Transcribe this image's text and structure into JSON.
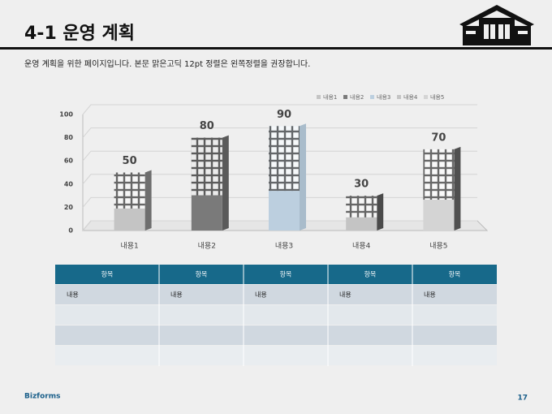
{
  "header": {
    "title": "4-1 운영 계획",
    "description": "운영 계획을 위한 페이지입니다. 본문 맑은고딕 12pt 정렬은 왼쪽정렬을 권장합니다."
  },
  "chart_data": {
    "type": "bar",
    "categories": [
      "내용1",
      "내용2",
      "내용3",
      "내용4",
      "내용5"
    ],
    "values": [
      50,
      80,
      90,
      30,
      70
    ],
    "colors": [
      "#c4c4c4",
      "#7a7a7a",
      "#bccfdf",
      "#c4c4c4",
      "#d4d4d4"
    ],
    "side_colors": [
      "#6e6e6e",
      "#5a5a5a",
      "#a9bccb",
      "#4a4a4a",
      "#505050"
    ],
    "ylim": [
      0,
      100
    ],
    "yticks": [
      0,
      20,
      40,
      60,
      80,
      100
    ],
    "grid": true,
    "legend": "top-right"
  },
  "table": {
    "header": [
      "항목",
      "항목",
      "항목",
      "항목",
      "항목"
    ],
    "rows": [
      [
        "내용",
        "내용",
        "내용",
        "내용",
        "내용"
      ]
    ]
  },
  "footer": {
    "brand": "Bizforms",
    "page": 17
  }
}
